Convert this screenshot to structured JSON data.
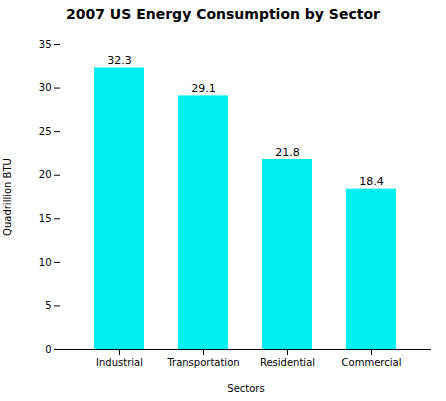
{
  "chart_data": {
    "type": "bar",
    "title": "2007 US Energy Consumption by Sector",
    "xlabel": "Sectors",
    "ylabel": "Quadrillion BTU",
    "categories": [
      "Industrial",
      "Transportation",
      "Residential",
      "Commercial"
    ],
    "values": [
      32.3,
      29.1,
      21.8,
      18.4
    ],
    "color": "#00EEEE",
    "ylim": [
      0,
      35
    ],
    "yticks": [
      0,
      5,
      10,
      15,
      20,
      25,
      30,
      35
    ],
    "grid": false,
    "data_labels": true
  }
}
